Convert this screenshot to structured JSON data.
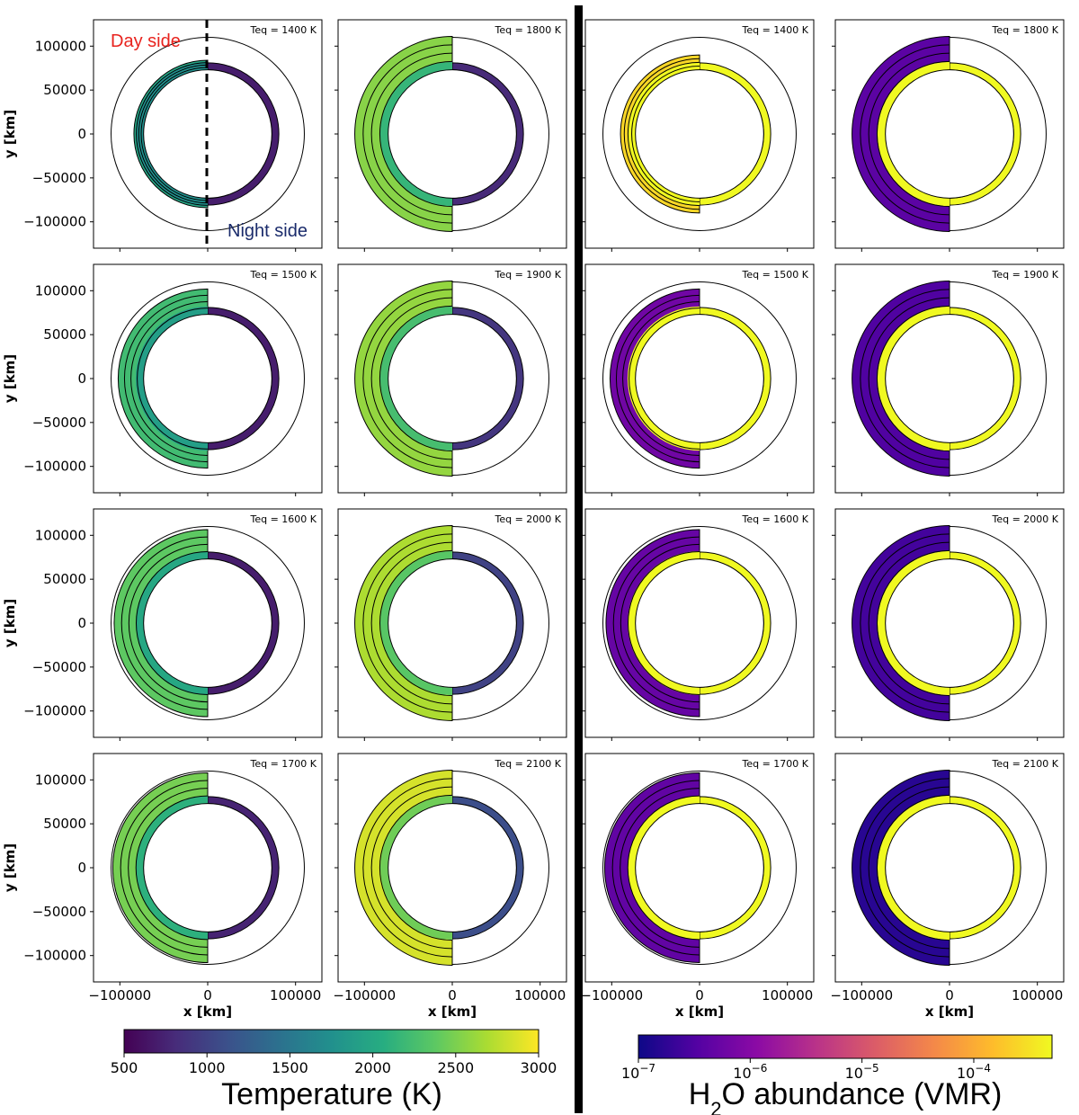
{
  "chart_data": {
    "type": "heatmap",
    "title": "",
    "xlabel": "x [km]",
    "ylabel": "y [km]",
    "xlim": [
      -130000,
      130000
    ],
    "ylim": [
      -130000,
      130000
    ],
    "x_ticks": [
      -100000,
      0,
      100000
    ],
    "x_tick_labels": [
      "−100000",
      "0",
      "100000"
    ],
    "y_ticks": [
      100000,
      50000,
      0,
      -50000,
      -100000
    ],
    "y_tick_labels": [
      "100000",
      "50000",
      "0",
      "−50000",
      "−100000"
    ],
    "annotations": {
      "day_side": "Day side",
      "night_side": "Night side",
      "day_color": "#e8231e",
      "night_color": "#1a2b6b"
    },
    "panels": [
      {
        "quantity": "temperature",
        "col": 0,
        "row": 0,
        "teq": 1400,
        "label": "Teq = 1400 K",
        "day_value": 2000,
        "limb_value": 1750,
        "night_value": 700,
        "day_extent": 0.1
      },
      {
        "quantity": "temperature",
        "col": 0,
        "row": 1,
        "teq": 1500,
        "label": "Teq = 1500 K",
        "day_value": 2220,
        "limb_value": 1900,
        "night_value": 700,
        "day_extent": 0.7
      },
      {
        "quantity": "temperature",
        "col": 0,
        "row": 2,
        "teq": 1600,
        "label": "Teq = 1600 K",
        "day_value": 2380,
        "limb_value": 2000,
        "night_value": 700,
        "day_extent": 0.85
      },
      {
        "quantity": "temperature",
        "col": 0,
        "row": 3,
        "teq": 1700,
        "label": "Teq = 1700 K",
        "day_value": 2480,
        "limb_value": 2100,
        "night_value": 750,
        "day_extent": 0.9
      },
      {
        "quantity": "temperature",
        "col": 1,
        "row": 0,
        "teq": 1800,
        "label": "Teq = 1800 K",
        "day_value": 2550,
        "limb_value": 2150,
        "night_value": 800,
        "day_extent": 1.0
      },
      {
        "quantity": "temperature",
        "col": 1,
        "row": 1,
        "teq": 1900,
        "label": "Teq = 1900 K",
        "day_value": 2600,
        "limb_value": 2250,
        "night_value": 900,
        "day_extent": 1.0
      },
      {
        "quantity": "temperature",
        "col": 1,
        "row": 2,
        "teq": 2000,
        "label": "Teq = 2000 K",
        "day_value": 2700,
        "limb_value": 2350,
        "night_value": 1000,
        "day_extent": 1.0
      },
      {
        "quantity": "temperature",
        "col": 1,
        "row": 3,
        "teq": 2100,
        "label": "Teq = 2100 K",
        "day_value": 2850,
        "limb_value": 2450,
        "night_value": 1100,
        "day_extent": 1.0
      },
      {
        "quantity": "h2o",
        "col": 2,
        "row": 0,
        "teq": 1400,
        "label": "Teq = 1400 K",
        "day_log_vmr": -3.6,
        "night_log_vmr": -3.3,
        "day_extent": 0.3
      },
      {
        "quantity": "h2o",
        "col": 2,
        "row": 1,
        "teq": 1500,
        "label": "Teq = 1500 K",
        "day_log_vmr": -6.2,
        "night_log_vmr": -3.3,
        "day_extent": 0.7
      },
      {
        "quantity": "h2o",
        "col": 2,
        "row": 2,
        "teq": 1600,
        "label": "Teq = 1600 K",
        "day_log_vmr": -6.3,
        "night_log_vmr": -3.3,
        "day_extent": 0.85
      },
      {
        "quantity": "h2o",
        "col": 2,
        "row": 3,
        "teq": 1700,
        "label": "Teq = 1700 K",
        "day_log_vmr": -6.35,
        "night_log_vmr": -3.3,
        "day_extent": 0.9
      },
      {
        "quantity": "h2o",
        "col": 3,
        "row": 0,
        "teq": 1800,
        "label": "Teq = 1800 K",
        "day_log_vmr": -6.4,
        "night_log_vmr": -3.3,
        "day_extent": 1.0
      },
      {
        "quantity": "h2o",
        "col": 3,
        "row": 1,
        "teq": 1900,
        "label": "Teq = 1900 K",
        "day_log_vmr": -6.5,
        "night_log_vmr": -3.3,
        "day_extent": 1.0
      },
      {
        "quantity": "h2o",
        "col": 3,
        "row": 2,
        "teq": 2000,
        "label": "Teq = 2000 K",
        "day_log_vmr": -6.6,
        "night_log_vmr": -3.3,
        "day_extent": 1.0
      },
      {
        "quantity": "h2o",
        "col": 3,
        "row": 3,
        "teq": 2100,
        "label": "Teq = 2100 K",
        "day_log_vmr": -6.8,
        "night_log_vmr": -3.3,
        "day_extent": 1.0
      }
    ],
    "colorbars": [
      {
        "id": "temperature",
        "label": "Temperature (K)",
        "range": [
          500,
          3000
        ],
        "ticks": [
          500,
          1000,
          1500,
          2000,
          2500,
          3000
        ],
        "tick_labels": [
          "500",
          "1000",
          "1500",
          "2000",
          "2500",
          "3000"
        ],
        "colormap": "viridis",
        "scale": "linear"
      },
      {
        "id": "h2o",
        "label_main": "H",
        "label_sub": "2",
        "label_rest": "O abundance (VMR)",
        "range_log10": [
          -7,
          -3.3
        ],
        "ticks_log10": [
          -7,
          -6,
          -5,
          -4
        ],
        "tick_bases": [
          "10",
          "10",
          "10",
          "10"
        ],
        "tick_exponents": [
          "−7",
          "−6",
          "−5",
          "−4"
        ],
        "colormap": "plasma",
        "scale": "log"
      }
    ]
  }
}
